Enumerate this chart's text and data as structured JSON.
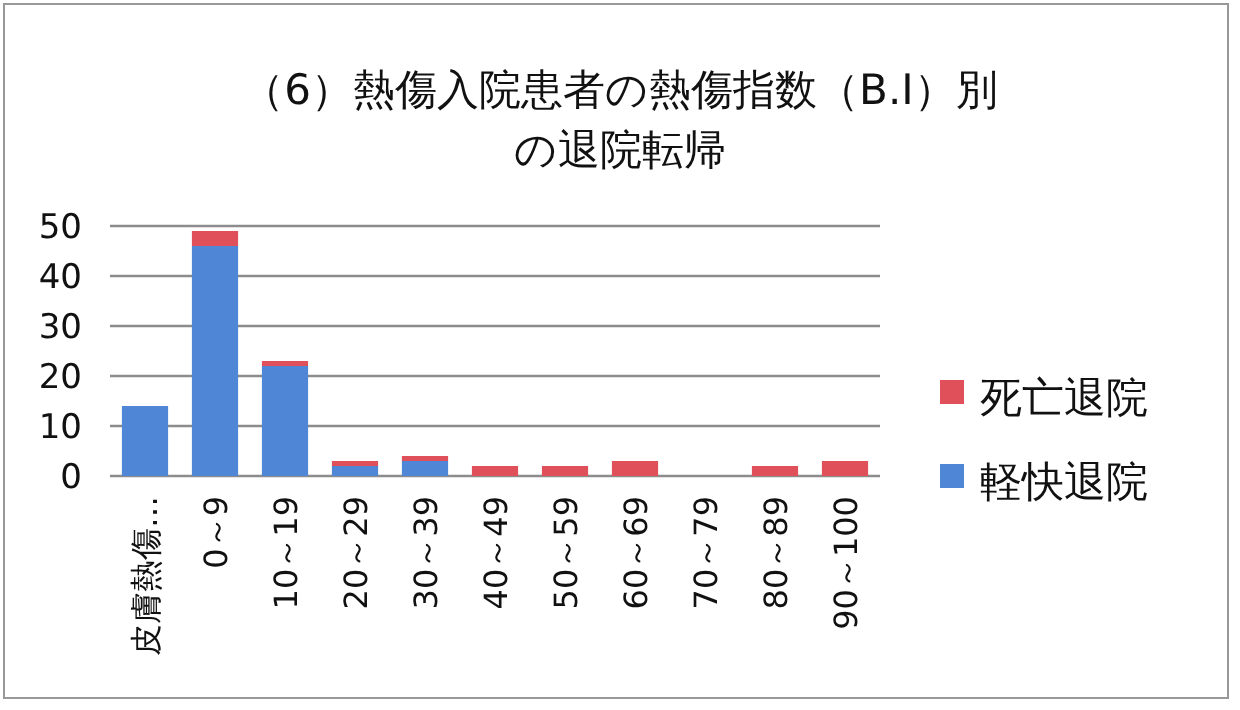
{
  "chart_data": {
    "type": "bar",
    "title": "（6）熱傷入院患者の熱傷指数（B.I）別の退院転帰",
    "stacked": true,
    "categories": [
      "皮膚熱傷…",
      "0～9",
      "10～19",
      "20～29",
      "30～39",
      "40～49",
      "50～59",
      "60～69",
      "70～79",
      "80～89",
      "90～100"
    ],
    "series": [
      {
        "name": "軽快退院",
        "color": "#4f86d6",
        "values": [
          14,
          46,
          22,
          2,
          3,
          0,
          0,
          0,
          0,
          0,
          0
        ]
      },
      {
        "name": "死亡退院",
        "color": "#e0505a",
        "values": [
          0,
          3,
          1,
          1,
          1,
          2,
          2,
          3,
          0,
          2,
          3
        ]
      }
    ],
    "ylim": [
      0,
      50
    ],
    "yticks": [
      0,
      10,
      20,
      30,
      40,
      50
    ],
    "grid": "y",
    "legend": "right"
  }
}
